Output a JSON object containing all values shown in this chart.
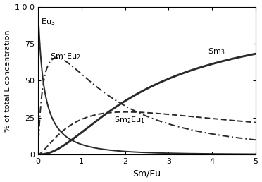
{
  "xlabel": "Sm/Eu",
  "ylabel": "% of total L concentration",
  "xlim": [
    0,
    5
  ],
  "ylim": [
    0,
    100
  ],
  "xticks": [
    0,
    1,
    2,
    3,
    4,
    5
  ],
  "yticks": [
    0,
    25,
    50,
    75,
    100
  ],
  "ytick_labels": [
    "0",
    "25",
    "50",
    "75",
    "1 0 0"
  ],
  "label_texts": [
    "Eu$_3$",
    "Sm$_1$Eu$_2$",
    "Sm$_2$Eu$_1$",
    "Sm$_3$"
  ],
  "line_color": "#2a2a2a",
  "K_Eu3": 1.0,
  "K_Sm1Eu2": 8.0,
  "K_Sm2Eu1": 3.5,
  "K_Sm3": 2.2,
  "annot_Eu3": [
    0.06,
    88
  ],
  "annot_Sm1Eu2": [
    0.27,
    65
  ],
  "annot_Sm2Eu1": [
    1.75,
    22
  ],
  "annot_Sm3": [
    3.9,
    68
  ]
}
